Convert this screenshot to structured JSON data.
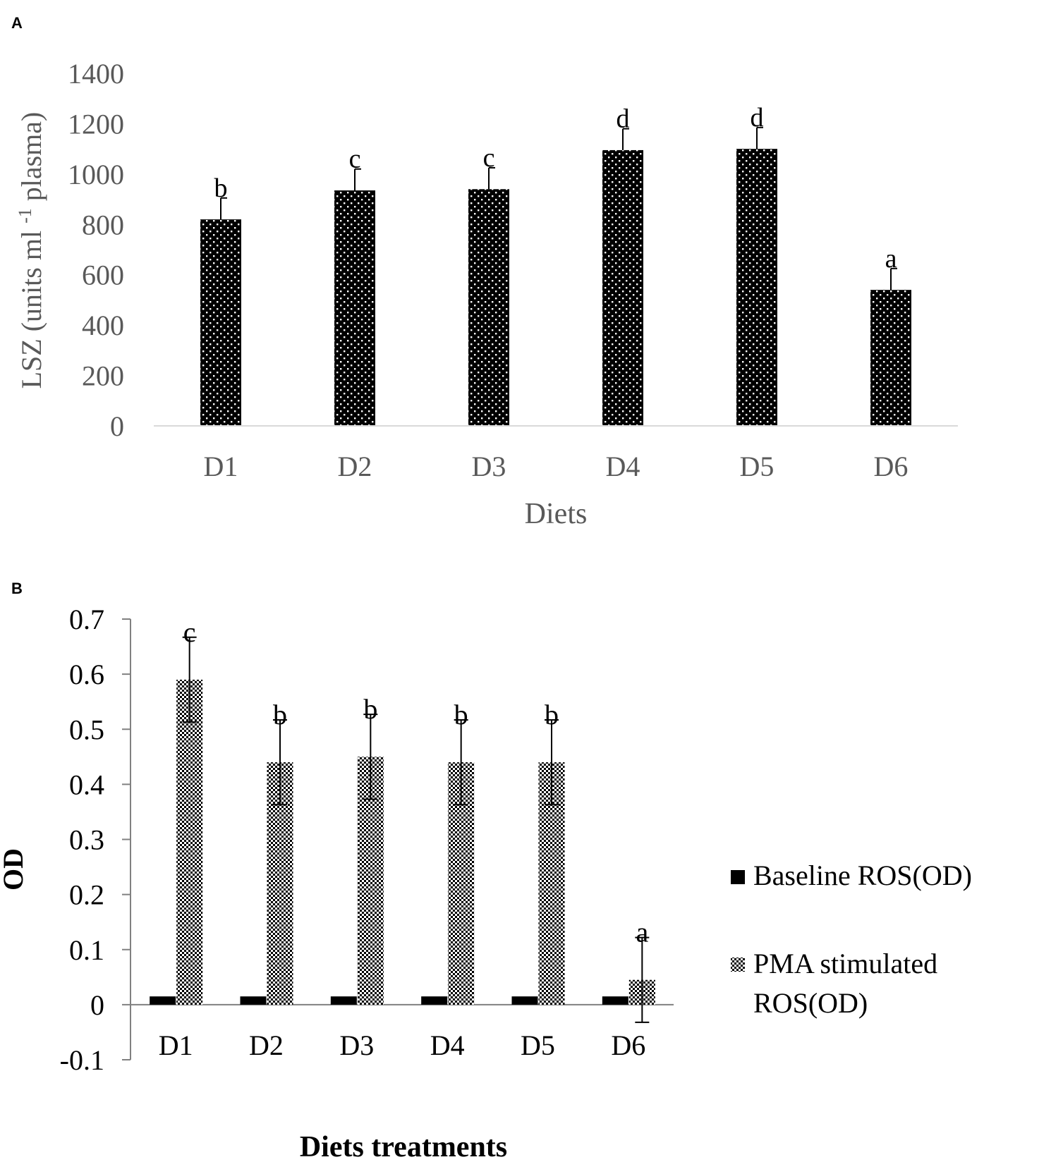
{
  "chart_data": [
    {
      "panel": "A",
      "type": "bar",
      "categories": [
        "D1",
        "D2",
        "D3",
        "D4",
        "D5",
        "D6"
      ],
      "values": [
        820,
        935,
        940,
        1095,
        1100,
        540
      ],
      "errors": [
        85,
        85,
        85,
        85,
        85,
        85
      ],
      "significance": [
        "b",
        "c",
        "c",
        "d",
        "d",
        "a"
      ],
      "title": "",
      "xlabel": "Diets",
      "ylabel": "LSZ (units ml -1 plasma)",
      "ylabel_parts": {
        "pre": "LSZ (units ml ",
        "sup": "-1",
        "post": " plasma)"
      },
      "ylim": [
        0,
        1400
      ],
      "yticks": [
        0,
        200,
        400,
        600,
        800,
        1000,
        1200,
        1400
      ],
      "grid": false,
      "colors": {
        "bar": "#000000",
        "dots": "#ffffff",
        "axis_text": "#595959",
        "axis_line": "#d9d9d9"
      }
    },
    {
      "panel": "B",
      "type": "bar",
      "categories": [
        "D1",
        "D2",
        "D3",
        "D4",
        "D5",
        "D6"
      ],
      "series": [
        {
          "name": "Baseline ROS(OD)",
          "legend_lines": [
            "Baseline ROS(OD)"
          ],
          "values": [
            0.015,
            0.015,
            0.015,
            0.015,
            0.015,
            0.015
          ],
          "pattern": "solid"
        },
        {
          "name": "PMA stimulated ROS(OD)",
          "legend_lines": [
            "PMA stimulated",
            "ROS(OD)"
          ],
          "values": [
            0.59,
            0.44,
            0.45,
            0.44,
            0.44,
            0.045
          ],
          "errors": [
            0.077,
            0.077,
            0.077,
            0.077,
            0.077,
            0.077
          ],
          "pattern": "checker"
        }
      ],
      "significance": [
        "c",
        "b",
        "b",
        "b",
        "b",
        "a"
      ],
      "title": "",
      "xlabel": "Diets treatments",
      "ylabel": "OD",
      "ylim": [
        -0.1,
        0.7
      ],
      "yticks": [
        -0.1,
        0,
        0.1,
        0.2,
        0.3,
        0.4,
        0.5,
        0.6,
        0.7
      ],
      "legend_position": "right",
      "grid": false,
      "colors": {
        "bar": "#000000",
        "axis_text": "#000000",
        "axis_line": "#808080"
      }
    }
  ]
}
